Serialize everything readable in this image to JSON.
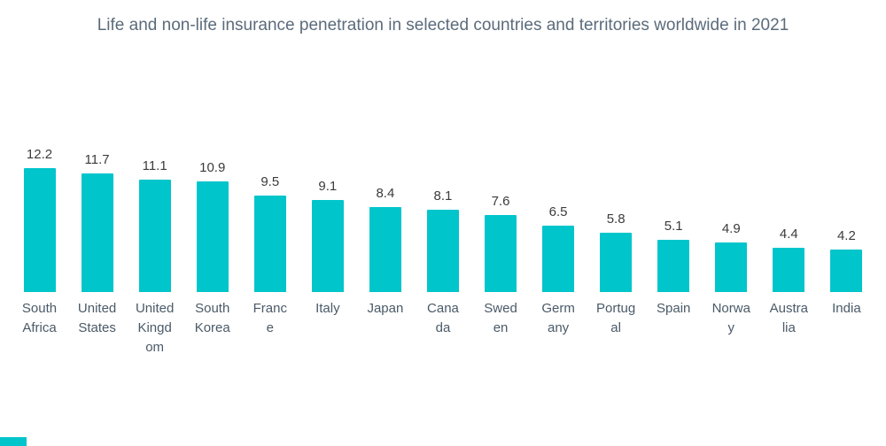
{
  "chart_data": {
    "type": "bar",
    "title": "Life and non-life insurance penetration in selected countries and territories worldwide in 2021",
    "categories": [
      "South Africa",
      "United States",
      "United Kingdom",
      "South Korea",
      "France",
      "Italy",
      "Japan",
      "Canada",
      "Sweden",
      "Germany",
      "Portugal",
      "Spain",
      "Norway",
      "Australia",
      "India"
    ],
    "values": [
      12.2,
      11.7,
      11.1,
      10.9,
      9.5,
      9.1,
      8.4,
      8.1,
      7.6,
      6.5,
      5.8,
      5.1,
      4.9,
      4.4,
      4.2
    ],
    "value_labels": [
      "12.2",
      "11.7",
      "11.1",
      "10.9",
      "9.5",
      "9.1",
      "8.4",
      "8.1",
      "7.6",
      "6.5",
      "5.8",
      "5.1",
      "4.9",
      "4.4",
      "4.2"
    ],
    "category_label_lines": [
      [
        "South",
        "Africa"
      ],
      [
        "United",
        "States"
      ],
      [
        "United",
        "Kingd",
        "om"
      ],
      [
        "South",
        "Korea"
      ],
      [
        "Franc",
        "e"
      ],
      [
        "Italy"
      ],
      [
        "Japan"
      ],
      [
        "Cana",
        "da"
      ],
      [
        "Swed",
        "en"
      ],
      [
        "Germ",
        "any"
      ],
      [
        "Portug",
        "al"
      ],
      [
        "Spain"
      ],
      [
        "Norwa",
        "y"
      ],
      [
        "Austra",
        "lia"
      ],
      [
        "India"
      ]
    ],
    "xlabel": "",
    "ylabel": "",
    "ylim": [
      0,
      12.2
    ],
    "grid": false,
    "legend": false,
    "bar_color": "#00c5cb",
    "title_color": "#5b6b7b",
    "value_label_color": "#3b3b3b",
    "category_label_color": "#4a5a68"
  }
}
